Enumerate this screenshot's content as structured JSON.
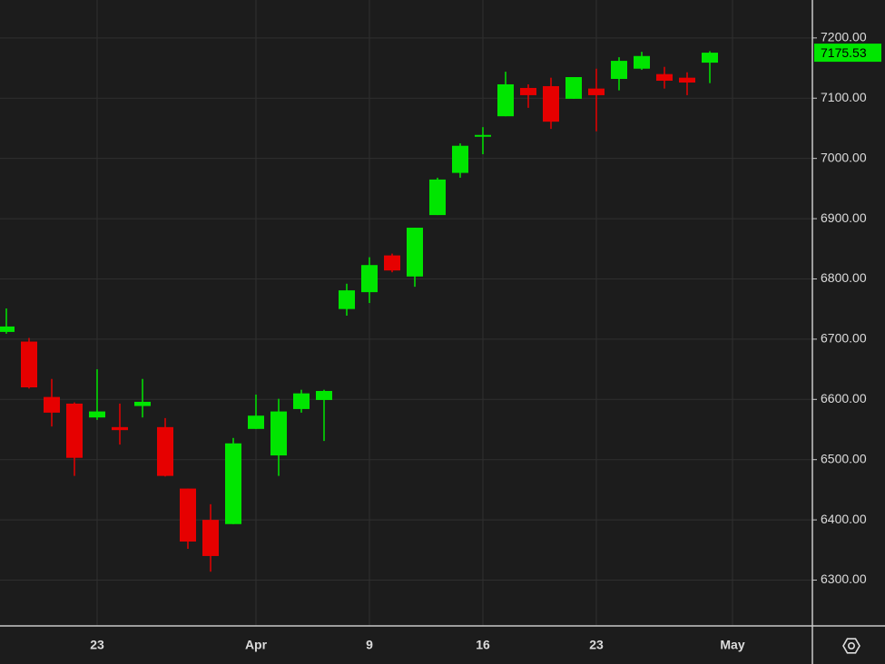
{
  "chart_data": {
    "type": "candlestick",
    "categories": [
      null,
      null,
      null,
      null,
      "23",
      null,
      null,
      null,
      null,
      null,
      null,
      "Apr",
      null,
      null,
      null,
      null,
      "9",
      null,
      null,
      null,
      null,
      "16",
      null,
      null,
      null,
      null,
      "23",
      null,
      null,
      null,
      null,
      null,
      "May"
    ],
    "open": [
      6712,
      6696,
      6604,
      6593,
      6570,
      6554,
      6589,
      6554,
      6452,
      6400,
      6393,
      6551,
      6507,
      6584,
      6599,
      6750,
      6778,
      6839,
      6804,
      6906,
      6976,
      7036,
      7070,
      7117,
      7120,
      7099,
      7116,
      7132,
      7149,
      7140,
      7134,
      7159,
      null
    ],
    "high": [
      6751,
      6702,
      6634,
      6595,
      6650,
      6593,
      6634,
      6569,
      6452,
      6426,
      6536,
      6608,
      6601,
      6616,
      6616,
      6792,
      6836,
      6842,
      6885,
      6968,
      7025,
      7052,
      7144,
      7123,
      7134,
      7135,
      7149,
      7168,
      7177,
      7152,
      7143,
      7178,
      null
    ],
    "low": [
      6709,
      6618,
      6555,
      6473,
      6566,
      6525,
      6570,
      6472,
      6352,
      6314,
      6393,
      6551,
      6473,
      6578,
      6531,
      6739,
      6760,
      6811,
      6787,
      6906,
      6968,
      7007,
      7070,
      7084,
      7049,
      7099,
      7045,
      7113,
      7147,
      7116,
      7105,
      7125,
      null
    ],
    "close": [
      6721,
      6620,
      6578,
      6503,
      6580,
      6549,
      6596,
      6473,
      6364,
      6340,
      6527,
      6573,
      6580,
      6610,
      6614,
      6781,
      6823,
      6814,
      6885,
      6965,
      7021,
      7039,
      7123,
      7105,
      7061,
      7135,
      7105,
      7162,
      7170,
      7129,
      7126,
      7175.53,
      null
    ],
    "up_color": "#00e600",
    "down_color": "#e60000",
    "ylim": [
      6224,
      7263
    ],
    "yticks": [
      {
        "value": 6300,
        "label": "6300.00"
      },
      {
        "value": 6400,
        "label": "6400.00"
      },
      {
        "value": 6500,
        "label": "6500.00"
      },
      {
        "value": 6600,
        "label": "6600.00"
      },
      {
        "value": 6700,
        "label": "6700.00"
      },
      {
        "value": 6800,
        "label": "6800.00"
      },
      {
        "value": 6900,
        "label": "6900.00"
      },
      {
        "value": 7000,
        "label": "7000.00"
      },
      {
        "value": 7100,
        "label": "7100.00"
      },
      {
        "value": 7200,
        "label": "7200.00"
      }
    ],
    "grid": true
  }
}
